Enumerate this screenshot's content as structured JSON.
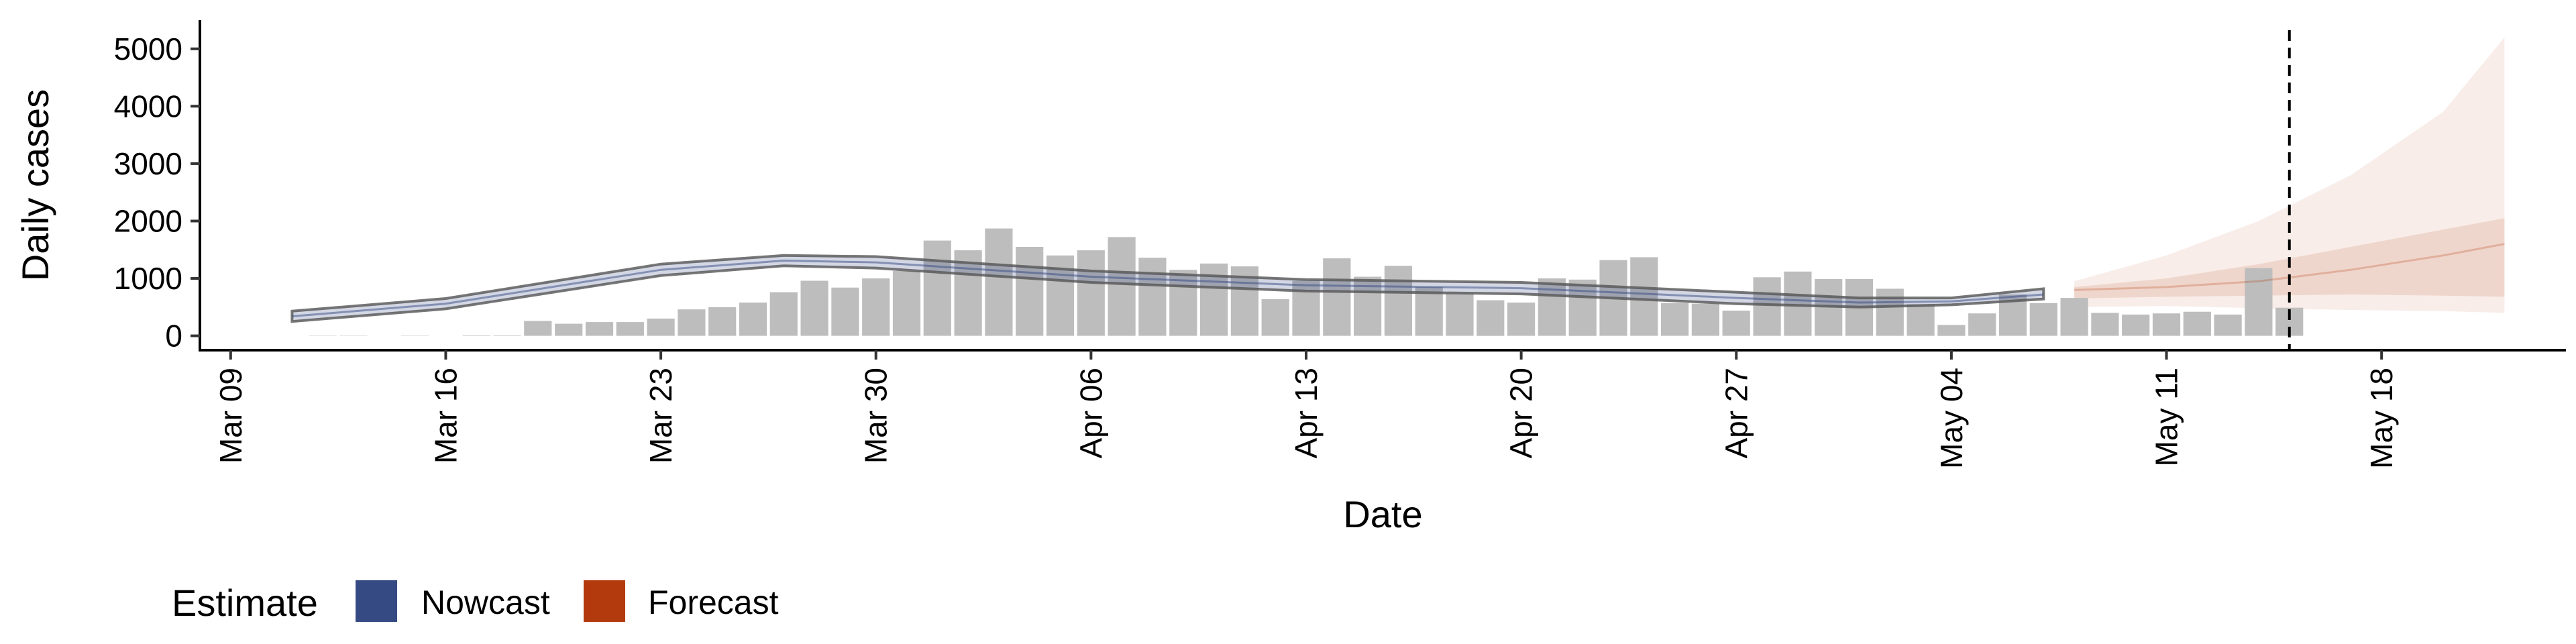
{
  "chart_data": {
    "type": "bar",
    "xlabel": "Date",
    "ylabel": "Daily cases",
    "xlim": [
      "2020-03-08",
      "2020-05-24"
    ],
    "ylim": [
      -250,
      5500
    ],
    "x_ticks": [
      "Mar 09",
      "Mar 16",
      "Mar 23",
      "Mar 30",
      "Apr 06",
      "Apr 13",
      "Apr 20",
      "Apr 27",
      "May 04",
      "May 11",
      "May 18"
    ],
    "x_tick_dates": [
      "2020-03-09",
      "2020-03-16",
      "2020-03-23",
      "2020-03-30",
      "2020-04-06",
      "2020-04-13",
      "2020-04-20",
      "2020-04-27",
      "2020-05-04",
      "2020-05-11",
      "2020-05-18"
    ],
    "y_ticks": [
      0,
      1000,
      2000,
      3000,
      4000,
      5000
    ],
    "grid": false,
    "legend": {
      "title": "Estimate",
      "position": "bottom-left",
      "items": [
        {
          "label": "Nowcast",
          "color": "#354a82"
        },
        {
          "label": "Forecast",
          "color": "#b33a0c"
        }
      ]
    },
    "reported_cases": {
      "color": "#bdbdbd",
      "dates": [
        "2020-03-12",
        "2020-03-13",
        "2020-03-14",
        "2020-03-15",
        "2020-03-16",
        "2020-03-17",
        "2020-03-18",
        "2020-03-19",
        "2020-03-20",
        "2020-03-21",
        "2020-03-22",
        "2020-03-23",
        "2020-03-24",
        "2020-03-25",
        "2020-03-26",
        "2020-03-27",
        "2020-03-28",
        "2020-03-29",
        "2020-03-30",
        "2020-03-31",
        "2020-04-01",
        "2020-04-02",
        "2020-04-03",
        "2020-04-04",
        "2020-04-05",
        "2020-04-06",
        "2020-04-07",
        "2020-04-08",
        "2020-04-09",
        "2020-04-10",
        "2020-04-11",
        "2020-04-12",
        "2020-04-13",
        "2020-04-14",
        "2020-04-15",
        "2020-04-16",
        "2020-04-17",
        "2020-04-18",
        "2020-04-19",
        "2020-04-20",
        "2020-04-21",
        "2020-04-22",
        "2020-04-23",
        "2020-04-24",
        "2020-04-25",
        "2020-04-26",
        "2020-04-27",
        "2020-04-28",
        "2020-04-29",
        "2020-04-30",
        "2020-05-01",
        "2020-05-02",
        "2020-05-03",
        "2020-05-04",
        "2020-05-05",
        "2020-05-06",
        "2020-05-07",
        "2020-05-08",
        "2020-05-09",
        "2020-05-10",
        "2020-05-11",
        "2020-05-12",
        "2020-05-13",
        "2020-05-14",
        "2020-05-15"
      ],
      "values": [
        5,
        5,
        0,
        5,
        0,
        8,
        8,
        260,
        210,
        240,
        240,
        300,
        460,
        500,
        580,
        760,
        960,
        840,
        1000,
        1130,
        1660,
        1490,
        1870,
        1550,
        1400,
        1490,
        1720,
        1360,
        1150,
        1260,
        1210,
        640,
        960,
        1350,
        1030,
        1220,
        850,
        740,
        620,
        580,
        1000,
        980,
        1320,
        1370,
        570,
        560,
        440,
        1020,
        1120,
        990,
        990,
        820,
        550,
        190,
        390,
        720,
        570,
        660,
        400,
        370,
        390,
        420,
        370,
        1180,
        490
      ]
    },
    "nowcast": {
      "color": "#354a82",
      "dates": [
        "2020-03-11",
        "2020-03-16",
        "2020-03-23",
        "2020-03-27",
        "2020-03-30",
        "2020-04-06",
        "2020-04-13",
        "2020-04-20",
        "2020-04-27",
        "2020-05-01",
        "2020-05-04",
        "2020-05-07"
      ],
      "median": [
        340,
        560,
        1150,
        1310,
        1280,
        1030,
        880,
        830,
        660,
        580,
        600,
        720
      ],
      "lower": [
        250,
        470,
        1050,
        1220,
        1180,
        930,
        780,
        730,
        560,
        500,
        540,
        640
      ],
      "upper": [
        430,
        650,
        1250,
        1400,
        1380,
        1130,
        980,
        930,
        760,
        660,
        660,
        820
      ]
    },
    "forecast": {
      "color": "#b33a0c",
      "dates": [
        "2020-05-08",
        "2020-05-11",
        "2020-05-14",
        "2020-05-17",
        "2020-05-20",
        "2020-05-22"
      ],
      "median": [
        800,
        850,
        950,
        1150,
        1400,
        1600
      ],
      "inner_lower": [
        650,
        680,
        700,
        720,
        700,
        680
      ],
      "inner_upper": [
        850,
        1000,
        1250,
        1550,
        1850,
        2050
      ],
      "outer_lower": [
        500,
        520,
        480,
        450,
        430,
        400
      ],
      "outer_upper": [
        950,
        1400,
        2000,
        2800,
        3900,
        5200
      ]
    },
    "vline_date": "2020-05-15"
  }
}
